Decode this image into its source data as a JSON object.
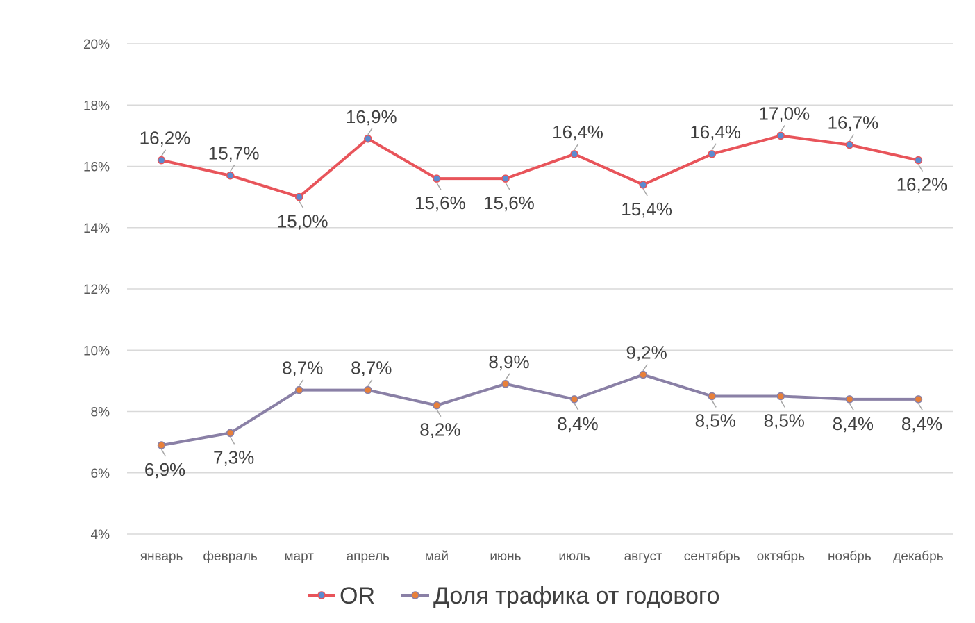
{
  "chart_data": {
    "type": "line",
    "categories": [
      "январь",
      "февраль",
      "март",
      "апрель",
      "май",
      "июнь",
      "июль",
      "август",
      "сентябрь",
      "октябрь",
      "ноябрь",
      "декабрь"
    ],
    "ylim": [
      4,
      20
    ],
    "yticks": [
      4,
      6,
      8,
      10,
      12,
      14,
      16,
      18,
      20
    ],
    "ytick_suffix": "%",
    "grid": true,
    "legend": "bottom",
    "series": [
      {
        "name": "OR",
        "color": "#E8545A",
        "marker_color": "#5B8BD0",
        "values": [
          16.2,
          15.7,
          15.0,
          16.9,
          15.6,
          15.6,
          16.4,
          15.4,
          16.4,
          17.0,
          16.7,
          16.2
        ],
        "labels": [
          "16,2%",
          "15,7%",
          "15,0%",
          "16,9%",
          "15,6%",
          "15,6%",
          "16,4%",
          "15,4%",
          "16,4%",
          "17,0%",
          "16,7%",
          "16,2%"
        ],
        "label_positions": [
          "above",
          "above",
          "below",
          "above",
          "below",
          "below",
          "above",
          "below",
          "above",
          "above",
          "above",
          "below"
        ]
      },
      {
        "name": "Доля трафика от годового",
        "color": "#8A80A6",
        "marker_color": "#E8803A",
        "values": [
          6.9,
          7.3,
          8.7,
          8.7,
          8.2,
          8.9,
          8.4,
          9.2,
          8.5,
          8.5,
          8.4,
          8.4
        ],
        "labels": [
          "6,9%",
          "7,3%",
          "8,7%",
          "8,7%",
          "8,2%",
          "8,9%",
          "8,4%",
          "9,2%",
          "8,5%",
          "8,5%",
          "8,4%",
          "8,4%"
        ],
        "label_positions": [
          "below",
          "below",
          "above",
          "above",
          "below",
          "above",
          "below",
          "above",
          "below",
          "below",
          "below",
          "below"
        ]
      }
    ]
  }
}
